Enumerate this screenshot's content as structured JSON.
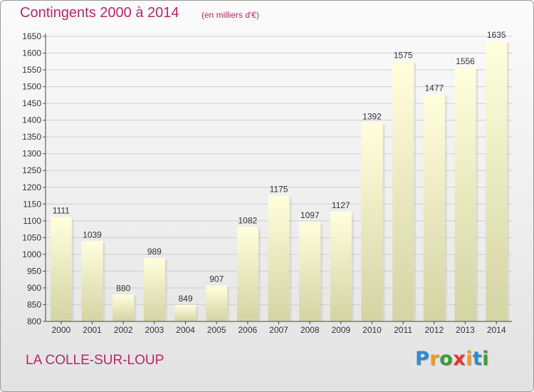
{
  "header": {
    "title": "Contingents 2000 à 2014",
    "subtitle": "(en milliers d'€)"
  },
  "footer": {
    "location": "LA COLLE-SUR-LOUP",
    "logo_text": "Proxiti"
  },
  "colors": {
    "accent": "#b8266a",
    "bar_top": "#ffffdd",
    "bar_bottom": "#d3d3a3",
    "grid": "#cfcfcf",
    "logo_letters": [
      "#2e8bd0",
      "#f29a1e",
      "#3a9b3a",
      "#e6372e",
      "#f29a1e",
      "#2e8bd0",
      "#3a9b3a"
    ]
  },
  "chart_data": {
    "type": "bar",
    "title": "Contingents 2000 à 2014",
    "subtitle": "(en milliers d'€)",
    "xlabel": "",
    "ylabel": "",
    "categories": [
      "2000",
      "2001",
      "2002",
      "2003",
      "2004",
      "2005",
      "2006",
      "2007",
      "2008",
      "2009",
      "2010",
      "2011",
      "2012",
      "2013",
      "2014"
    ],
    "values": [
      1111,
      1039,
      880,
      989,
      849,
      907,
      1082,
      1175,
      1097,
      1127,
      1392,
      1575,
      1477,
      1556,
      1635
    ],
    "ylim": [
      800,
      1650
    ],
    "yticks": [
      800,
      850,
      900,
      950,
      1000,
      1050,
      1100,
      1150,
      1200,
      1250,
      1300,
      1350,
      1400,
      1450,
      1500,
      1550,
      1600,
      1650
    ],
    "grid": true,
    "legend": "none"
  }
}
